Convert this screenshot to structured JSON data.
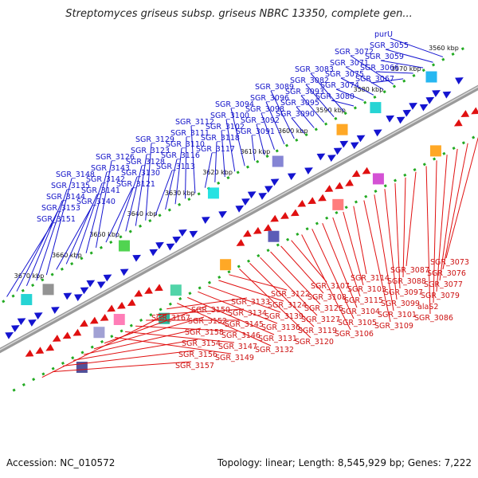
{
  "title": "Streptomyces griseus subsp. griseus NBRC 13350, complete gen...",
  "footer": {
    "accession": "Accession: NC_010572",
    "summary": "Topology: linear; Length: 8,545,929 bp; Genes: 7,222"
  },
  "colors": {
    "plus_strand": "#1414d0",
    "minus_strand": "#e01010",
    "backbone": "#808080",
    "track_dots": "#22aa22"
  },
  "ticks": [
    "3560 kbp",
    "3570 kbp",
    "3580 kbp",
    "3590 kbp",
    "3600 kbp",
    "3610 kbp",
    "3620 kbp",
    "3630 kbp",
    "3640 kbp",
    "3650 kbp",
    "3660 kbp",
    "3670 kbp"
  ],
  "plus_labels": [
    {
      "name": "purU"
    },
    {
      "name": "SGR_3055"
    },
    {
      "name": "SGR_3059"
    },
    {
      "name": "SGR_3066"
    },
    {
      "name": "SGR_3067"
    },
    {
      "name": "SGR_3072"
    },
    {
      "name": "SGR_3071"
    },
    {
      "name": "SGR_3075"
    },
    {
      "name": "SGR_3074"
    },
    {
      "name": "SGR_3080"
    },
    {
      "name": "SGR_3083"
    },
    {
      "name": "SGR_3082"
    },
    {
      "name": "SGR_3093"
    },
    {
      "name": "SGR_3095"
    },
    {
      "name": "SGR_3090"
    },
    {
      "name": "SGR_3089"
    },
    {
      "name": "SGR_3096"
    },
    {
      "name": "SGR_3098"
    },
    {
      "name": "SGR_3092"
    },
    {
      "name": "SGR_3091"
    },
    {
      "name": "SGR_3094"
    },
    {
      "name": "SGR_3100"
    },
    {
      "name": "SGR_3102"
    },
    {
      "name": "SGR_3118"
    },
    {
      "name": "SGR_3117"
    },
    {
      "name": "SGR_3112"
    },
    {
      "name": "SGR_3111"
    },
    {
      "name": "SGR_3110"
    },
    {
      "name": "SGR_3116"
    },
    {
      "name": "SGR_3113"
    },
    {
      "name": "SGR_3129"
    },
    {
      "name": "SGR_3123"
    },
    {
      "name": "SGR_3128"
    },
    {
      "name": "SGR_3130"
    },
    {
      "name": "SGR_3121"
    },
    {
      "name": "SGR_3126"
    },
    {
      "name": "SGR_3143"
    },
    {
      "name": "SGR_3142"
    },
    {
      "name": "SGR_3141"
    },
    {
      "name": "SGR_3140"
    },
    {
      "name": "SGR_3148"
    },
    {
      "name": "SGR_3135"
    },
    {
      "name": "SGR_3144"
    },
    {
      "name": "SGR_3153"
    },
    {
      "name": "SGR_3151"
    }
  ],
  "minus_labels": [
    {
      "name": "SGR_3073"
    },
    {
      "name": "SGR_3076"
    },
    {
      "name": "SGR_3077"
    },
    {
      "name": "SGR_3079"
    },
    {
      "name": "alaS2"
    },
    {
      "name": "SGR_3086"
    },
    {
      "name": "SGR_3087"
    },
    {
      "name": "SGR_3088"
    },
    {
      "name": "SGR_3097"
    },
    {
      "name": "SGR_3099"
    },
    {
      "name": "SGR_3101"
    },
    {
      "name": "SGR_3109"
    },
    {
      "name": "SGR_3114"
    },
    {
      "name": "SGR_3103"
    },
    {
      "name": "SGR_3115"
    },
    {
      "name": "SGR_3104"
    },
    {
      "name": "SGR_3105"
    },
    {
      "name": "SGR_3106"
    },
    {
      "name": "SGR_3107"
    },
    {
      "name": "SGR_3108"
    },
    {
      "name": "SGR_3125"
    },
    {
      "name": "SGR_3127"
    },
    {
      "name": "SGR_3119"
    },
    {
      "name": "SGR_3120"
    },
    {
      "name": "SGR_3122"
    },
    {
      "name": "SGR_3124"
    },
    {
      "name": "SGR_3139"
    },
    {
      "name": "SGR_3136"
    },
    {
      "name": "SGR_3131"
    },
    {
      "name": "SGR_3132"
    },
    {
      "name": "SGR_3133"
    },
    {
      "name": "SGR_3134"
    },
    {
      "name": "SGR_3145"
    },
    {
      "name": "SGR_3146"
    },
    {
      "name": "SGR_3147"
    },
    {
      "name": "SGR_3149"
    },
    {
      "name": "SGR_3150"
    },
    {
      "name": "SGR_3152"
    },
    {
      "name": "SGR_3158"
    },
    {
      "name": "SGR_3154"
    },
    {
      "name": "SGR_3156"
    },
    {
      "name": "SGR_3157"
    },
    {
      "name": "SGR_3167"
    }
  ]
}
